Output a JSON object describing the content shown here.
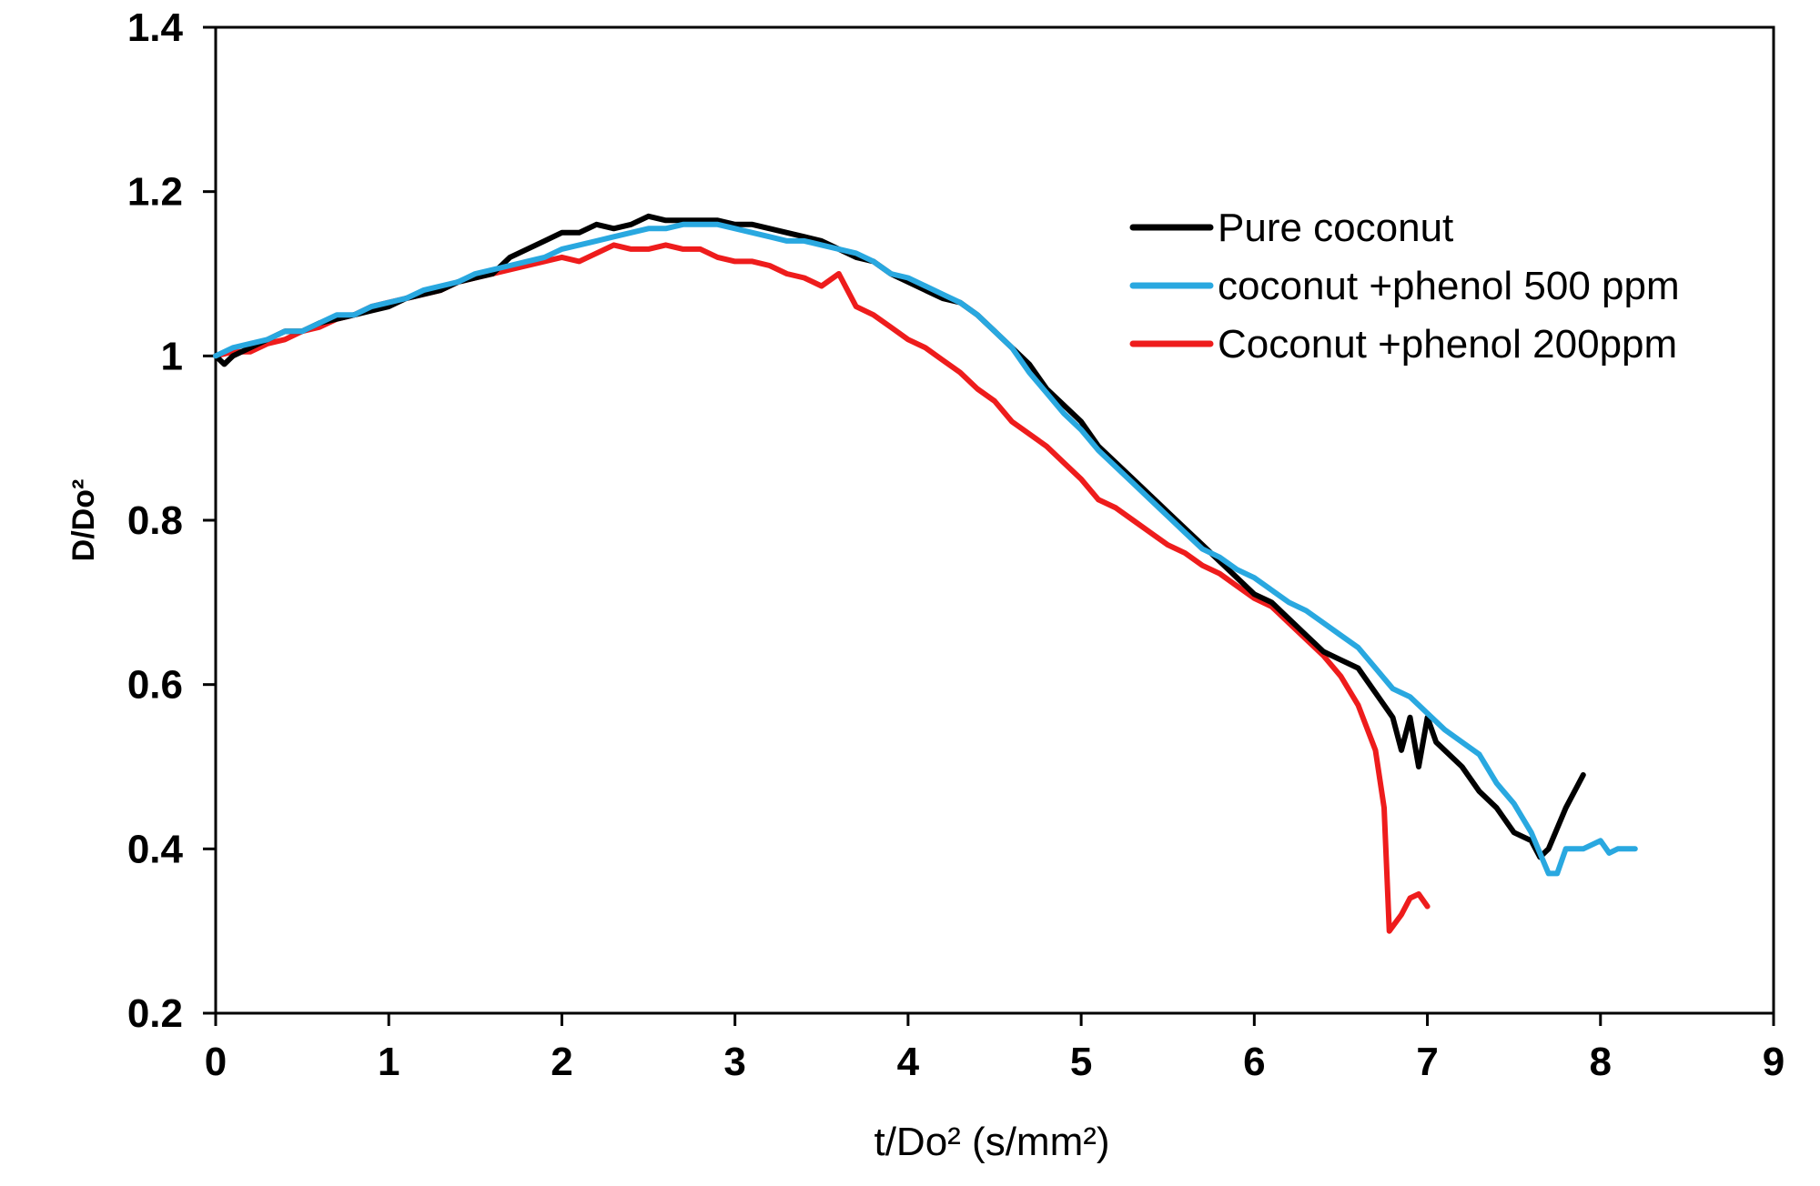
{
  "chart_data": {
    "type": "line",
    "title": "",
    "xlabel": "t/Do² (s/mm²)",
    "ylabel": "D/Do²",
    "xlim": [
      0,
      9
    ],
    "ylim": [
      0.2,
      1.4
    ],
    "x_ticks": [
      "0",
      "1",
      "2",
      "3",
      "4",
      "5",
      "6",
      "7",
      "8",
      "9"
    ],
    "y_ticks": [
      "0.2",
      "0.4",
      "0.6",
      "0.8",
      "1",
      "1.2",
      "1.4"
    ],
    "grid": false,
    "legend_position": "top-right",
    "series": [
      {
        "name": "Pure coconut",
        "color": "#000000",
        "points": [
          [
            0.0,
            1.0
          ],
          [
            0.05,
            0.99
          ],
          [
            0.1,
            1.0
          ],
          [
            0.2,
            1.01
          ],
          [
            0.3,
            1.02
          ],
          [
            0.4,
            1.03
          ],
          [
            0.5,
            1.03
          ],
          [
            0.6,
            1.04
          ],
          [
            0.7,
            1.045
          ],
          [
            0.8,
            1.05
          ],
          [
            0.9,
            1.055
          ],
          [
            1.0,
            1.06
          ],
          [
            1.1,
            1.07
          ],
          [
            1.2,
            1.075
          ],
          [
            1.3,
            1.08
          ],
          [
            1.4,
            1.09
          ],
          [
            1.5,
            1.095
          ],
          [
            1.6,
            1.1
          ],
          [
            1.7,
            1.12
          ],
          [
            1.8,
            1.13
          ],
          [
            1.9,
            1.14
          ],
          [
            2.0,
            1.15
          ],
          [
            2.1,
            1.15
          ],
          [
            2.2,
            1.16
          ],
          [
            2.3,
            1.155
          ],
          [
            2.4,
            1.16
          ],
          [
            2.5,
            1.17
          ],
          [
            2.6,
            1.165
          ],
          [
            2.7,
            1.165
          ],
          [
            2.8,
            1.165
          ],
          [
            2.9,
            1.165
          ],
          [
            3.0,
            1.16
          ],
          [
            3.1,
            1.16
          ],
          [
            3.2,
            1.155
          ],
          [
            3.3,
            1.15
          ],
          [
            3.4,
            1.145
          ],
          [
            3.5,
            1.14
          ],
          [
            3.6,
            1.13
          ],
          [
            3.7,
            1.12
          ],
          [
            3.8,
            1.115
          ],
          [
            3.9,
            1.1
          ],
          [
            4.0,
            1.09
          ],
          [
            4.1,
            1.08
          ],
          [
            4.2,
            1.07
          ],
          [
            4.3,
            1.065
          ],
          [
            4.4,
            1.05
          ],
          [
            4.5,
            1.03
          ],
          [
            4.6,
            1.01
          ],
          [
            4.7,
            0.99
          ],
          [
            4.8,
            0.96
          ],
          [
            4.9,
            0.94
          ],
          [
            5.0,
            0.92
          ],
          [
            5.1,
            0.89
          ],
          [
            5.2,
            0.87
          ],
          [
            5.3,
            0.85
          ],
          [
            5.4,
            0.83
          ],
          [
            5.5,
            0.81
          ],
          [
            5.6,
            0.79
          ],
          [
            5.7,
            0.77
          ],
          [
            5.8,
            0.75
          ],
          [
            5.9,
            0.73
          ],
          [
            6.0,
            0.71
          ],
          [
            6.1,
            0.7
          ],
          [
            6.2,
            0.68
          ],
          [
            6.3,
            0.66
          ],
          [
            6.4,
            0.64
          ],
          [
            6.5,
            0.63
          ],
          [
            6.6,
            0.62
          ],
          [
            6.7,
            0.59
          ],
          [
            6.8,
            0.56
          ],
          [
            6.85,
            0.52
          ],
          [
            6.9,
            0.56
          ],
          [
            6.95,
            0.5
          ],
          [
            7.0,
            0.56
          ],
          [
            7.05,
            0.53
          ],
          [
            7.1,
            0.52
          ],
          [
            7.2,
            0.5
          ],
          [
            7.3,
            0.47
          ],
          [
            7.4,
            0.45
          ],
          [
            7.5,
            0.42
          ],
          [
            7.6,
            0.41
          ],
          [
            7.65,
            0.39
          ],
          [
            7.7,
            0.4
          ],
          [
            7.8,
            0.45
          ],
          [
            7.9,
            0.49
          ]
        ]
      },
      {
        "name": "coconut +phenol 500 ppm",
        "color": "#29A8E0",
        "points": [
          [
            0.0,
            1.0
          ],
          [
            0.1,
            1.01
          ],
          [
            0.2,
            1.015
          ],
          [
            0.3,
            1.02
          ],
          [
            0.4,
            1.03
          ],
          [
            0.5,
            1.03
          ],
          [
            0.6,
            1.04
          ],
          [
            0.7,
            1.05
          ],
          [
            0.8,
            1.05
          ],
          [
            0.9,
            1.06
          ],
          [
            1.0,
            1.065
          ],
          [
            1.1,
            1.07
          ],
          [
            1.2,
            1.08
          ],
          [
            1.3,
            1.085
          ],
          [
            1.4,
            1.09
          ],
          [
            1.5,
            1.1
          ],
          [
            1.6,
            1.105
          ],
          [
            1.7,
            1.11
          ],
          [
            1.8,
            1.115
          ],
          [
            1.9,
            1.12
          ],
          [
            2.0,
            1.13
          ],
          [
            2.1,
            1.135
          ],
          [
            2.2,
            1.14
          ],
          [
            2.3,
            1.145
          ],
          [
            2.4,
            1.15
          ],
          [
            2.5,
            1.155
          ],
          [
            2.6,
            1.155
          ],
          [
            2.7,
            1.16
          ],
          [
            2.8,
            1.16
          ],
          [
            2.9,
            1.16
          ],
          [
            3.0,
            1.155
          ],
          [
            3.1,
            1.15
          ],
          [
            3.2,
            1.145
          ],
          [
            3.3,
            1.14
          ],
          [
            3.4,
            1.14
          ],
          [
            3.5,
            1.135
          ],
          [
            3.6,
            1.13
          ],
          [
            3.7,
            1.125
          ],
          [
            3.8,
            1.115
          ],
          [
            3.9,
            1.1
          ],
          [
            4.0,
            1.095
          ],
          [
            4.1,
            1.085
          ],
          [
            4.2,
            1.075
          ],
          [
            4.3,
            1.065
          ],
          [
            4.4,
            1.05
          ],
          [
            4.5,
            1.03
          ],
          [
            4.6,
            1.01
          ],
          [
            4.7,
            0.98
          ],
          [
            4.8,
            0.955
          ],
          [
            4.9,
            0.93
          ],
          [
            5.0,
            0.91
          ],
          [
            5.1,
            0.885
          ],
          [
            5.2,
            0.865
          ],
          [
            5.3,
            0.845
          ],
          [
            5.4,
            0.825
          ],
          [
            5.5,
            0.805
          ],
          [
            5.6,
            0.785
          ],
          [
            5.7,
            0.765
          ],
          [
            5.8,
            0.755
          ],
          [
            5.9,
            0.74
          ],
          [
            6.0,
            0.73
          ],
          [
            6.1,
            0.715
          ],
          [
            6.2,
            0.7
          ],
          [
            6.3,
            0.69
          ],
          [
            6.4,
            0.675
          ],
          [
            6.5,
            0.66
          ],
          [
            6.6,
            0.645
          ],
          [
            6.7,
            0.62
          ],
          [
            6.8,
            0.595
          ],
          [
            6.9,
            0.585
          ],
          [
            7.0,
            0.565
          ],
          [
            7.1,
            0.545
          ],
          [
            7.2,
            0.53
          ],
          [
            7.3,
            0.515
          ],
          [
            7.4,
            0.48
          ],
          [
            7.5,
            0.455
          ],
          [
            7.6,
            0.42
          ],
          [
            7.7,
            0.37
          ],
          [
            7.75,
            0.37
          ],
          [
            7.8,
            0.4
          ],
          [
            7.9,
            0.4
          ],
          [
            8.0,
            0.41
          ],
          [
            8.05,
            0.395
          ],
          [
            8.1,
            0.4
          ],
          [
            8.2,
            0.4
          ]
        ]
      },
      {
        "name": "Coconut +phenol 200ppm",
        "color": "#EE1C1C",
        "points": [
          [
            0.0,
            1.0
          ],
          [
            0.1,
            1.005
          ],
          [
            0.2,
            1.005
          ],
          [
            0.3,
            1.015
          ],
          [
            0.4,
            1.02
          ],
          [
            0.5,
            1.03
          ],
          [
            0.6,
            1.035
          ],
          [
            0.7,
            1.045
          ],
          [
            0.8,
            1.05
          ],
          [
            0.9,
            1.06
          ],
          [
            1.0,
            1.065
          ],
          [
            1.1,
            1.07
          ],
          [
            1.2,
            1.075
          ],
          [
            1.3,
            1.08
          ],
          [
            1.4,
            1.09
          ],
          [
            1.5,
            1.095
          ],
          [
            1.6,
            1.1
          ],
          [
            1.7,
            1.105
          ],
          [
            1.8,
            1.11
          ],
          [
            1.9,
            1.115
          ],
          [
            2.0,
            1.12
          ],
          [
            2.1,
            1.115
          ],
          [
            2.2,
            1.125
          ],
          [
            2.3,
            1.135
          ],
          [
            2.4,
            1.13
          ],
          [
            2.5,
            1.13
          ],
          [
            2.6,
            1.135
          ],
          [
            2.7,
            1.13
          ],
          [
            2.8,
            1.13
          ],
          [
            2.9,
            1.12
          ],
          [
            3.0,
            1.115
          ],
          [
            3.1,
            1.115
          ],
          [
            3.2,
            1.11
          ],
          [
            3.3,
            1.1
          ],
          [
            3.4,
            1.095
          ],
          [
            3.5,
            1.085
          ],
          [
            3.6,
            1.1
          ],
          [
            3.7,
            1.06
          ],
          [
            3.8,
            1.05
          ],
          [
            3.9,
            1.035
          ],
          [
            4.0,
            1.02
          ],
          [
            4.1,
            1.01
          ],
          [
            4.2,
            0.995
          ],
          [
            4.3,
            0.98
          ],
          [
            4.4,
            0.96
          ],
          [
            4.5,
            0.945
          ],
          [
            4.6,
            0.92
          ],
          [
            4.7,
            0.905
          ],
          [
            4.8,
            0.89
          ],
          [
            4.9,
            0.87
          ],
          [
            5.0,
            0.85
          ],
          [
            5.1,
            0.825
          ],
          [
            5.2,
            0.815
          ],
          [
            5.3,
            0.8
          ],
          [
            5.4,
            0.785
          ],
          [
            5.5,
            0.77
          ],
          [
            5.6,
            0.76
          ],
          [
            5.7,
            0.745
          ],
          [
            5.8,
            0.735
          ],
          [
            5.9,
            0.72
          ],
          [
            6.0,
            0.705
          ],
          [
            6.1,
            0.695
          ],
          [
            6.2,
            0.675
          ],
          [
            6.3,
            0.655
          ],
          [
            6.4,
            0.635
          ],
          [
            6.5,
            0.61
          ],
          [
            6.6,
            0.575
          ],
          [
            6.7,
            0.52
          ],
          [
            6.75,
            0.45
          ],
          [
            6.78,
            0.3
          ],
          [
            6.85,
            0.32
          ],
          [
            6.9,
            0.34
          ],
          [
            6.95,
            0.345
          ],
          [
            7.0,
            0.33
          ]
        ]
      }
    ]
  }
}
